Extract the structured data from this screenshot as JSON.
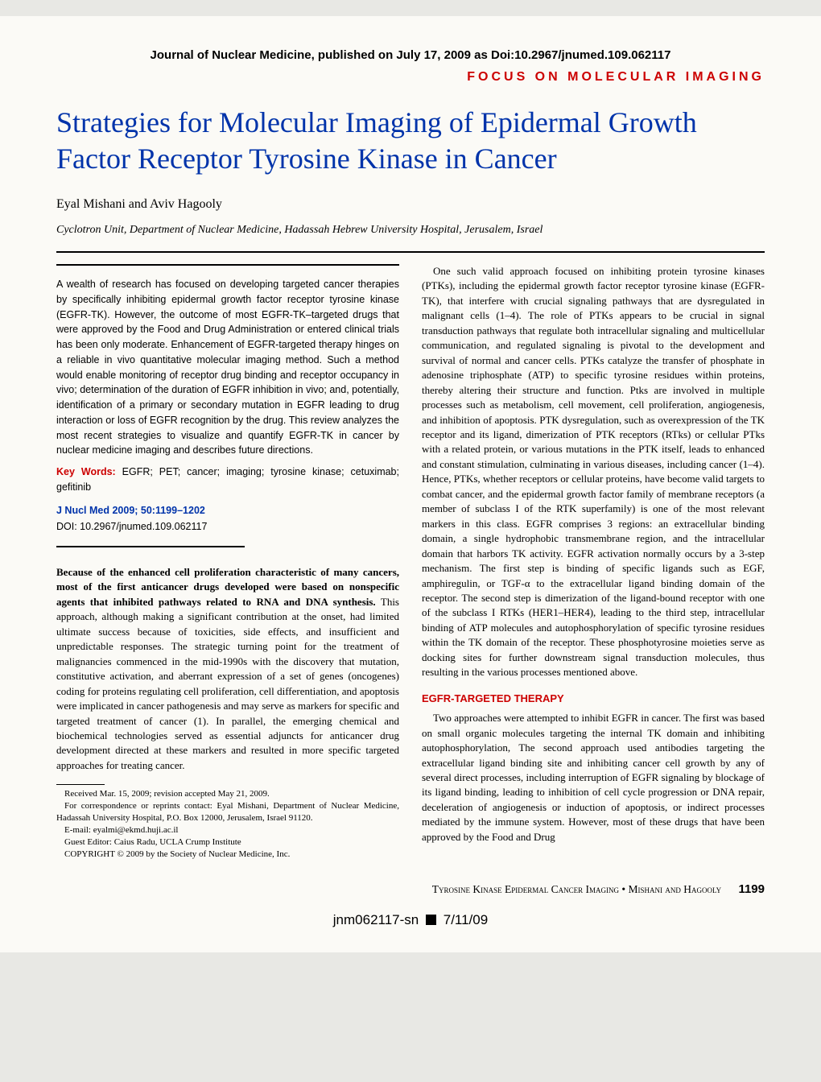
{
  "colors": {
    "accent_red": "#cc0000",
    "accent_blue": "#0033aa",
    "page_bg": "#fbfaf6",
    "outer_bg": "#e8e8e4",
    "text": "#000000"
  },
  "header": {
    "doi_header": "Journal of Nuclear Medicine, published on July 17, 2009 as Doi:10.2967/jnumed.109.062117",
    "banner": "FOCUS ON MOLECULAR IMAGING"
  },
  "article": {
    "title": "Strategies for Molecular Imaging of Epidermal Growth Factor Receptor Tyrosine Kinase in Cancer",
    "authors": "Eyal Mishani and Aviv Hagooly",
    "affiliation": "Cyclotron Unit, Department of Nuclear Medicine, Hadassah Hebrew University Hospital, Jerusalem, Israel"
  },
  "abstract": {
    "text": "A wealth of research has focused on developing targeted cancer therapies by specifically inhibiting epidermal growth factor receptor tyrosine kinase (EGFR-TK). However, the outcome of most EGFR-TK–targeted drugs that were approved by the Food and Drug Administration or entered clinical trials has been only moderate. Enhancement of EGFR-targeted therapy hinges on a reliable in vivo quantitative molecular imaging method. Such a method would enable monitoring of receptor drug binding and receptor occupancy in vivo; determination of the duration of EGFR inhibition in vivo; and, potentially, identification of a primary or secondary mutation in EGFR leading to drug interaction or loss of EGFR recognition by the drug. This review analyzes the most recent strategies to visualize and quantify EGFR-TK in cancer by nuclear medicine imaging and describes future directions.",
    "keywords_label": "Key Words:",
    "keywords": "EGFR; PET; cancer; imaging; tyrosine kinase; cetuximab; gefitinib",
    "citation": "J Nucl Med 2009; 50:1199–1202",
    "doi": "DOI: 10.2967/jnumed.109.062117"
  },
  "intro": {
    "lead": "Because of the enhanced cell proliferation characteristic of many cancers, most of the first anticancer drugs developed were based on nonspecific agents that inhibited pathways related to RNA and DNA synthesis.",
    "rest": " This approach, although making a significant contribution at the onset, had limited ultimate success because of toxicities, side effects, and insufficient and unpredictable responses. The strategic turning point for the treatment of malignancies commenced in the mid-1990s with the discovery that mutation, constitutive activation, and aberrant expression of a set of genes (oncogenes) coding for proteins regulating cell proliferation, cell differentiation, and apoptosis were implicated in cancer pathogenesis and may serve as markers for specific and targeted treatment of cancer (1). In parallel, the emerging chemical and biochemical technologies served as essential adjuncts for anticancer drug development directed at these markers and resulted in more specific targeted approaches for treating cancer."
  },
  "footnotes": {
    "received": "Received Mar. 15, 2009; revision accepted May 21, 2009.",
    "correspondence": "For correspondence or reprints contact: Eyal Mishani, Department of Nuclear Medicine, Hadassah University Hospital, P.O. Box 12000, Jerusalem, Israel 91120.",
    "email": "E-mail: eyalmi@ekmd.huji.ac.il",
    "guest_editor": "Guest Editor: Caius Radu, UCLA Crump Institute",
    "copyright": "COPYRIGHT © 2009 by the Society of Nuclear Medicine, Inc."
  },
  "right_column": {
    "para1": "One such valid approach focused on inhibiting protein tyrosine kinases (PTKs), including the epidermal growth factor receptor tyrosine kinase (EGFR-TK), that interfere with crucial signaling pathways that are dysregulated in malignant cells (1–4). The role of PTKs appears to be crucial in signal transduction pathways that regulate both intracellular signaling and multicellular communication, and regulated signaling is pivotal to the development and survival of normal and cancer cells. PTKs catalyze the transfer of phosphate in adenosine triphosphate (ATP) to specific tyrosine residues within proteins, thereby altering their structure and function. Ptks are involved in multiple processes such as metabolism, cell movement, cell proliferation, angiogenesis, and inhibition of apoptosis. PTK dysregulation, such as overexpression of the TK receptor and its ligand, dimerization of PTK receptors (RTks) or cellular PTks with a related protein, or various mutations in the PTK itself, leads to enhanced and constant stimulation, culminating in various diseases, including cancer (1–4). Hence, PTKs, whether receptors or cellular proteins, have become valid targets to combat cancer, and the epidermal growth factor family of membrane receptors (a member of subclass I of the RTK superfamily) is one of the most relevant markers in this class. EGFR comprises 3 regions: an extracellular binding domain, a single hydrophobic transmembrane region, and the intracellular domain that harbors TK activity. EGFR activation normally occurs by a 3-step mechanism. The first step is binding of specific ligands such as EGF, amphiregulin, or TGF-α to the extracellular ligand binding domain of the receptor. The second step is dimerization of the ligand-bound receptor with one of the subclass I RTKs (HER1–HER4), leading to the third step, intracellular binding of ATP molecules and autophosphorylation of specific tyrosine residues within the TK domain of the receptor. These phosphotyrosine moieties serve as docking sites for further downstream signal transduction molecules, thus resulting in the various processes mentioned above.",
    "heading": "EGFR-TARGETED THERAPY",
    "para2": "Two approaches were attempted to inhibit EGFR in cancer. The first was based on small organic molecules targeting the internal TK domain and inhibiting autophosphorylation, The second approach used antibodies targeting the extracellular ligand binding site and inhibiting cancer cell growth by any of several direct processes, including interruption of EGFR signaling by blockage of its ligand binding, leading to inhibition of cell cycle progression or DNA repair, deceleration of angiogenesis or induction of apoptosis, or indirect processes mediated by the immune system. However, most of these drugs that have been approved by the Food and Drug"
  },
  "footer": {
    "running_title": "Tyrosine Kinase Epidermal Cancer Imaging • Mishani and Hagooly",
    "page_number": "1199",
    "stamp_left": "jnm062117-sn",
    "stamp_right": "7/11/09"
  }
}
